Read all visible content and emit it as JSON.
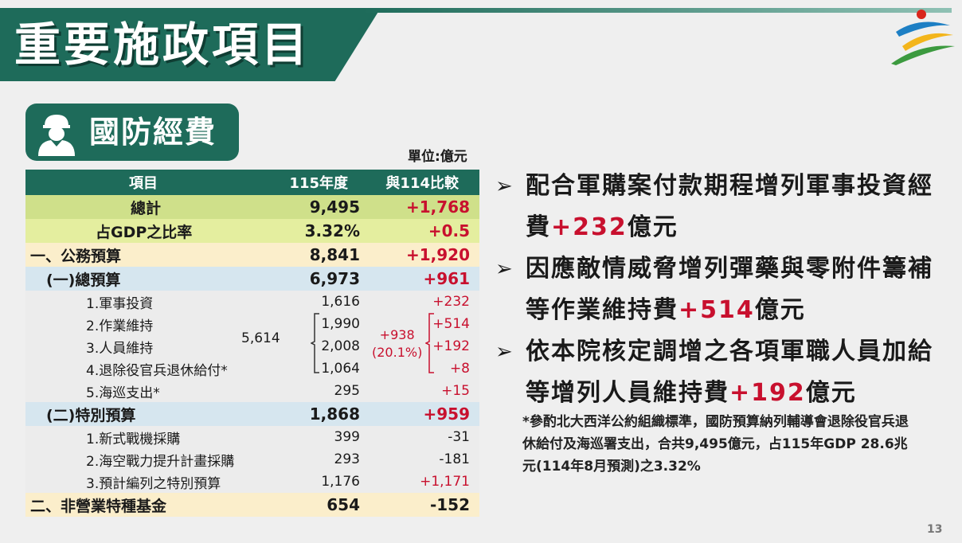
{
  "header": {
    "title": "重要施政項目"
  },
  "section": {
    "title": "國防經費",
    "unit": "單位:億元"
  },
  "table": {
    "columns": [
      "項目",
      "115年度",
      "與114比較"
    ],
    "rows": {
      "total": {
        "name": "總計",
        "value": "9,495",
        "cmp": "+1,768"
      },
      "gdp": {
        "name": "占GDP之比率",
        "value": "3.32%",
        "cmp": "+0.5"
      },
      "public": {
        "name": "一、公務預算",
        "value": "8,841",
        "cmp": "+1,920"
      },
      "general": {
        "name": "(一)總預算",
        "value": "6,973",
        "cmp": "+961"
      },
      "g1": {
        "name": "1.軍事投資",
        "value": "1,616",
        "cmp": "+232"
      },
      "g2": {
        "name": "2.作業維持",
        "value": "1,990",
        "cmp": "+514"
      },
      "g3": {
        "name": "3.人員維持",
        "value": "2,008",
        "cmp": "+192"
      },
      "g4": {
        "name": "4.退除役官兵退休給付*",
        "value": "1,064",
        "cmp": "+8"
      },
      "g5": {
        "name": "5.海巡支出*",
        "value": "295",
        "cmp": "+15"
      },
      "special": {
        "name": "(二)特別預算",
        "value": "1,868",
        "cmp": "+959"
      },
      "s1": {
        "name": "1.新式戰機採購",
        "value": "399",
        "cmp": "-31"
      },
      "s2": {
        "name": "2.海空戰力提升計畫採購",
        "value": "293",
        "cmp": "-181"
      },
      "s3": {
        "name": "3.預計編列之特別預算",
        "value": "1,176",
        "cmp": "+1,171"
      },
      "nonbiz": {
        "name": "二、非營業特種基金",
        "value": "654",
        "cmp": "-152"
      }
    },
    "group_total": "5,614",
    "group_cmp": "+938",
    "group_pct": "(20.1%)"
  },
  "bullets": [
    {
      "pre": "配合軍購案付款期程增列軍事投資經費",
      "hl": "+232",
      "post": "億元"
    },
    {
      "pre": "因應敵情威脅增列彈藥與零附件籌補等作業維持費",
      "hl": "+514",
      "post": "億元"
    },
    {
      "pre": "依本院核定調增之各項軍職人員加給等增列人員維持費",
      "hl": "+192",
      "post": "億元"
    }
  ],
  "note": "*參酌北大西洋公約組織標準，國防預算納列輔導會退除役官兵退休給付及海巡署支出，合共9,495億元，占115年GDP 28.6兆元(114年8月預測)之3.32%",
  "page_number": "13",
  "colors": {
    "primary": "#1e6b5a",
    "accent_red": "#c8102e"
  },
  "icons": {
    "section": "soldier-icon",
    "logo": "executive-yuan-logo",
    "bullet": "arrow-bullet-icon"
  }
}
